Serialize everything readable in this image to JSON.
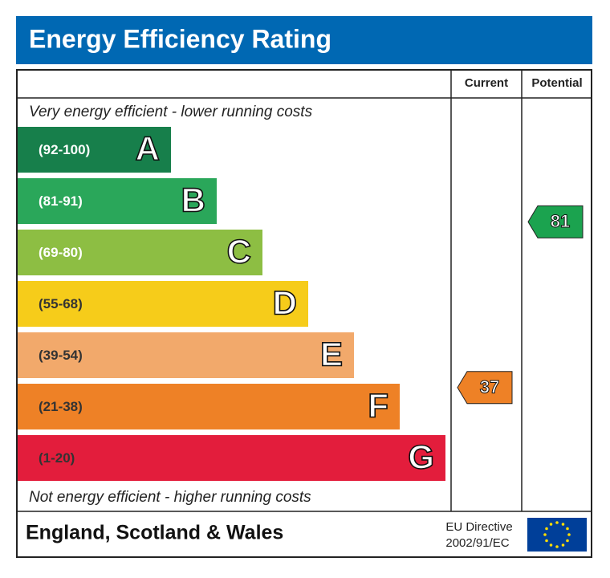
{
  "title": "Energy Efficiency Rating",
  "columns": [
    "Current",
    "Potential"
  ],
  "top_note": "Very energy efficient - lower running costs",
  "bottom_note": "Not energy efficient - higher running costs",
  "bands": [
    {
      "range": "(92-100)",
      "letter": "A",
      "color": "#177f4b",
      "text_color": "#ffffff"
    },
    {
      "range": "(81-91)",
      "letter": "B",
      "color": "#2aa75a",
      "text_color": "#ffffff"
    },
    {
      "range": "(69-80)",
      "letter": "C",
      "color": "#8dbe43",
      "text_color": "#ffffff"
    },
    {
      "range": "(55-68)",
      "letter": "D",
      "color": "#f6cc1a",
      "text_color": "#333333"
    },
    {
      "range": "(39-54)",
      "letter": "E",
      "color": "#f2a96b",
      "text_color": "#333333"
    },
    {
      "range": "(21-38)",
      "letter": "F",
      "color": "#ee8126",
      "text_color": "#333333"
    },
    {
      "range": "(1-20)",
      "letter": "G",
      "color": "#e31d3c",
      "text_color": "#333333"
    }
  ],
  "current": {
    "value": 37,
    "color": "#ee8126"
  },
  "potential": {
    "value": 81,
    "color": "#1ba34f"
  },
  "footer": {
    "region": "England, Scotland & Wales",
    "directive": [
      "EU Directive",
      "2002/91/EC"
    ]
  }
}
